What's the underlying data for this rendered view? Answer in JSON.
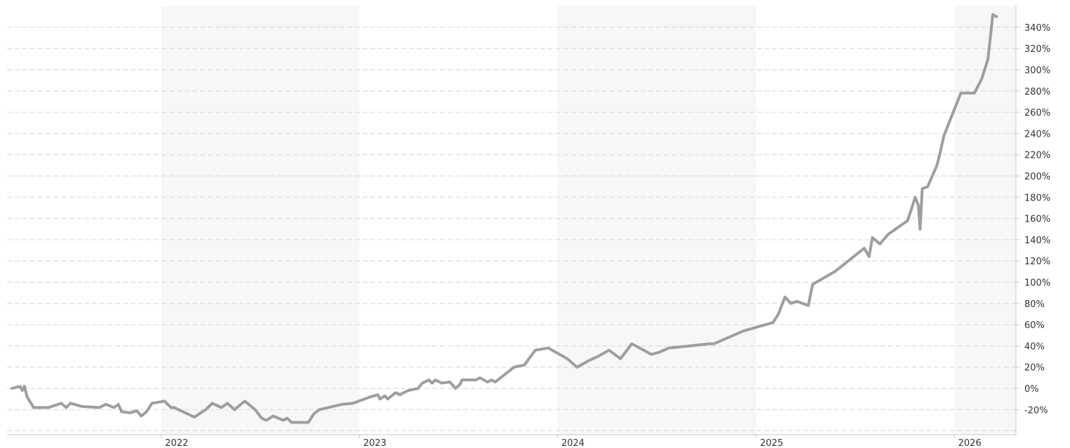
{
  "chart_data": {
    "type": "line",
    "title": "",
    "xlabel": "",
    "ylabel": "",
    "x_range": [
      "2021-04-01",
      "2026-03-27"
    ],
    "ylim": [
      -30,
      350
    ],
    "y_unit": "%",
    "y_ticks": [
      -20,
      0,
      20,
      40,
      60,
      80,
      100,
      120,
      140,
      160,
      180,
      200,
      220,
      240,
      260,
      280,
      300,
      320,
      340
    ],
    "y_tick_labels": [
      "-20%",
      "0%",
      "20%",
      "40%",
      "60%",
      "80%",
      "100%",
      "120%",
      "140%",
      "160%",
      "180%",
      "200%",
      "220%",
      "240%",
      "260%",
      "280%",
      "300%",
      "320%",
      "340%"
    ],
    "x_ticks": [
      "2022-01-01",
      "2023-01-01",
      "2024-01-01",
      "2025-01-01",
      "2026-01-01"
    ],
    "x_tick_labels": [
      "2022",
      "2023",
      "2024",
      "2025",
      "2026"
    ],
    "shaded_years": [
      "2022",
      "2024",
      "2026"
    ],
    "grid": true,
    "legend": "none",
    "colors": {
      "line": "#9e9e9e",
      "grid": "#d6d6d6",
      "band": "#f7f7f7",
      "axis": "#c8c8c8",
      "text": "#333333"
    },
    "series": [
      {
        "name": "",
        "x": [
          "2021-04-01",
          "2021-04-16",
          "2021-04-20",
          "2021-04-24",
          "2021-04-29",
          "2021-05-11",
          "2021-06-07",
          "2021-07-01",
          "2021-07-10",
          "2021-07-18",
          "2021-08-08",
          "2021-09-09",
          "2021-09-21",
          "2021-10-06",
          "2021-10-14",
          "2021-10-20",
          "2021-11-05",
          "2021-11-17",
          "2021-11-25",
          "2021-12-05",
          "2021-12-15",
          "2022-01-07",
          "2022-01-19",
          "2022-01-25",
          "2022-03-03",
          "2022-03-24",
          "2022-04-05",
          "2022-04-22",
          "2022-05-03",
          "2022-05-16",
          "2022-05-30",
          "2022-06-04",
          "2022-06-23",
          "2022-07-05",
          "2022-07-14",
          "2022-07-26",
          "2022-08-14",
          "2022-08-21",
          "2022-08-29",
          "2022-09-04",
          "2022-09-14",
          "2022-09-29",
          "2022-10-09",
          "2022-10-19",
          "2022-11-30",
          "2022-12-20",
          "2023-01-21",
          "2023-02-04",
          "2023-02-08",
          "2023-02-17",
          "2023-02-22",
          "2023-03-09",
          "2023-03-17",
          "2023-03-20",
          "2023-04-01",
          "2023-04-19",
          "2023-04-27",
          "2023-05-09",
          "2023-05-15",
          "2023-05-21",
          "2023-06-02",
          "2023-06-17",
          "2023-06-27",
          "2023-07-06",
          "2023-07-09",
          "2023-07-23",
          "2023-08-04",
          "2023-08-11",
          "2023-08-25",
          "2023-09-02",
          "2023-09-08",
          "2023-10-13",
          "2023-11-01",
          "2023-11-21",
          "2023-12-15",
          "2024-01-19",
          "2024-02-06",
          "2024-02-27",
          "2024-03-15",
          "2024-04-05",
          "2024-04-26",
          "2024-05-17",
          "2024-06-22",
          "2024-07-06",
          "2024-07-24",
          "2024-09-01",
          "2024-10-06",
          "2024-10-15",
          "2024-12-08",
          "2025-02-01",
          "2025-02-11",
          "2025-02-23",
          "2025-03-06",
          "2025-03-17",
          "2025-04-07",
          "2025-04-15",
          "2025-05-26",
          "2025-07-19",
          "2025-07-28",
          "2025-08-03",
          "2025-08-17",
          "2025-09-01",
          "2025-10-07",
          "2025-10-21",
          "2025-10-27",
          "2025-10-30",
          "2025-11-03",
          "2025-11-13",
          "2025-11-30",
          "2025-12-05",
          "2025-12-13",
          "2026-01-13",
          "2026-02-07",
          "2026-02-21",
          "2026-03-04",
          "2026-03-13",
          "2026-03-20"
        ],
        "y": [
          0,
          2,
          -2,
          2,
          -8,
          -18,
          -18,
          -14,
          -18,
          -14,
          -17,
          -18,
          -15,
          -18,
          -15,
          -22,
          -23,
          -21,
          -26,
          -22,
          -14,
          -12,
          -18,
          -18,
          -27,
          -20,
          -14,
          -18,
          -14,
          -20,
          -14,
          -12,
          -20,
          -28,
          -30,
          -26,
          -30,
          -28,
          -32,
          -32,
          -32,
          -32,
          -24,
          -20,
          -15,
          -14,
          -8,
          -6,
          -10,
          -7,
          -10,
          -4,
          -6,
          -5,
          -2,
          0,
          5,
          8,
          5,
          8,
          5,
          6,
          0,
          4,
          8,
          8,
          8,
          10,
          6,
          8,
          6,
          20,
          22,
          36,
          38,
          28,
          20,
          26,
          30,
          36,
          28,
          42,
          32,
          34,
          38,
          40,
          42,
          42,
          54,
          62,
          70,
          86,
          80,
          82,
          78,
          98,
          110,
          132,
          124,
          142,
          136,
          145,
          158,
          180,
          172,
          150,
          188,
          190,
          210,
          220,
          238,
          278,
          278,
          292,
          310,
          352,
          350
        ]
      }
    ]
  }
}
